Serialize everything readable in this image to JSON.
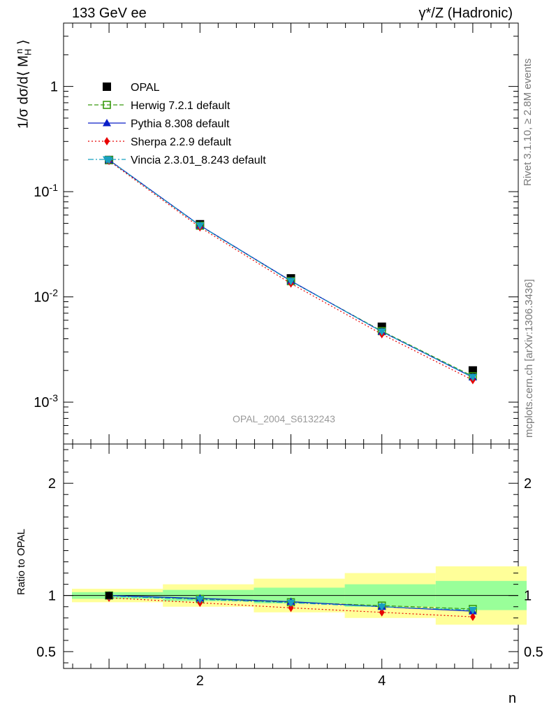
{
  "header": {
    "left": "133 GeV ee",
    "right": "γ*/Z (Hadronic)"
  },
  "side_text": {
    "rivet": "Rivet 3.1.10, ≥ 2.8M events",
    "source": "mcplots.cern.ch [arXiv:1306.3436]"
  },
  "watermark": "OPAL_2004_S6132243",
  "axes": {
    "main_ylabel": "1/σ dσ/d⟨ M_H^n ⟩",
    "ratio_ylabel": "Ratio to OPAL",
    "xlabel": "n"
  },
  "legend": [
    {
      "label": "OPAL",
      "color": "#000000",
      "marker": "square-filled",
      "line": "none"
    },
    {
      "label": "Herwig 7.2.1 default",
      "color": "#3a9a10",
      "marker": "square-open",
      "line": "dashed"
    },
    {
      "label": "Pythia 8.308 default",
      "color": "#0a1ec8",
      "marker": "triangle-up",
      "line": "solid"
    },
    {
      "label": "Sherpa 2.2.9 default",
      "color": "#e80000",
      "marker": "diamond",
      "line": "dotted"
    },
    {
      "label": "Vincia 2.3.01_8.243 default",
      "color": "#18a0c0",
      "marker": "triangle-down",
      "line": "dashdot"
    }
  ],
  "chart_data": [
    {
      "type": "line",
      "panel": "main",
      "yscale": "log",
      "xlim": [
        0.5,
        5.5
      ],
      "ylim": [
        0.0004,
        4
      ],
      "x": [
        1,
        2,
        3,
        4,
        5
      ],
      "y_tick_labels": [
        "10^-3",
        "10^-2",
        "10^-1",
        "1"
      ],
      "x_tick_labels": [
        "2",
        "4"
      ],
      "series": [
        {
          "name": "OPAL",
          "values": [
            0.2,
            0.049,
            0.015,
            0.0052,
            0.002
          ]
        },
        {
          "name": "Herwig 7.2.1 default",
          "values": [
            0.2,
            0.0475,
            0.0141,
            0.00473,
            0.00176
          ]
        },
        {
          "name": "Pythia 8.308 default",
          "values": [
            0.2,
            0.0478,
            0.0142,
            0.00467,
            0.00172
          ]
        },
        {
          "name": "Sherpa 2.2.9 default",
          "values": [
            0.196,
            0.0458,
            0.0134,
            0.00442,
            0.00162
          ]
        },
        {
          "name": "Vincia 2.3.01_8.243 default",
          "values": [
            0.199,
            0.0475,
            0.0141,
            0.00468,
            0.00173
          ]
        }
      ]
    },
    {
      "type": "line",
      "panel": "ratio",
      "xlim": [
        0.5,
        5.5
      ],
      "ylim": [
        0.35,
        2.35
      ],
      "x": [
        1,
        2,
        3,
        4,
        5
      ],
      "y_tick_labels": [
        "0.5",
        "1",
        "2"
      ],
      "bands": {
        "bin_edges": [
          0.5,
          1.5,
          2.5,
          3.5,
          4.5,
          5.5
        ],
        "green": [
          [
            0.97,
            1.03
          ],
          [
            0.95,
            1.05
          ],
          [
            0.93,
            1.07
          ],
          [
            0.9,
            1.1
          ],
          [
            0.87,
            1.13
          ]
        ],
        "yellow": [
          [
            0.94,
            1.06
          ],
          [
            0.9,
            1.1
          ],
          [
            0.85,
            1.15
          ],
          [
            0.8,
            1.2
          ],
          [
            0.74,
            1.26
          ]
        ]
      },
      "series": [
        {
          "name": "Herwig 7.2.1 default",
          "values": [
            1.0,
            0.97,
            0.94,
            0.91,
            0.88
          ]
        },
        {
          "name": "Pythia 8.308 default",
          "values": [
            1.0,
            0.975,
            0.945,
            0.9,
            0.86
          ]
        },
        {
          "name": "Sherpa 2.2.9 default",
          "values": [
            0.98,
            0.935,
            0.89,
            0.85,
            0.81
          ]
        },
        {
          "name": "Vincia 2.3.01_8.243 default",
          "values": [
            0.995,
            0.965,
            0.935,
            0.9,
            0.87
          ]
        }
      ]
    }
  ]
}
